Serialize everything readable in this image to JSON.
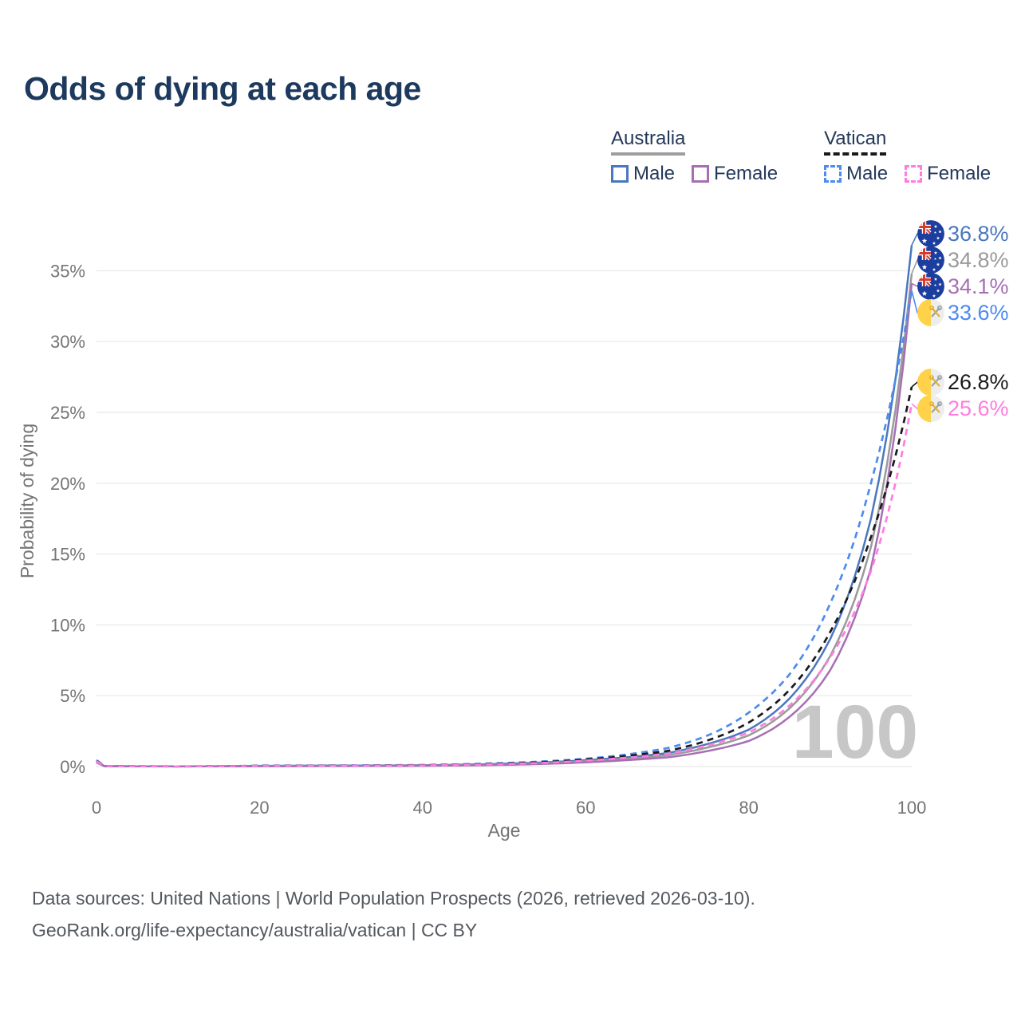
{
  "title": "Odds of dying at each age",
  "watermark": "100",
  "legend": {
    "groups": [
      {
        "country": "Australia",
        "line_style": "solid",
        "items": [
          {
            "label": "Male",
            "color_key": "australia_male"
          },
          {
            "label": "Female",
            "color_key": "australia_female"
          }
        ]
      },
      {
        "country": "Vatican",
        "line_style": "dashed",
        "items": [
          {
            "label": "Male",
            "color_key": "vatican_male"
          },
          {
            "label": "Female",
            "color_key": "vatican_female"
          }
        ]
      }
    ]
  },
  "footer": {
    "line1": "Data sources: United Nations | World Population Prospects (2026, retrieved 2026-03-10).",
    "line2": "GeoRank.org/life-expectancy/australia/vatican | CC BY"
  },
  "colors": {
    "title": "#1d3a5e",
    "legend_text": "#24395a",
    "axis_text": "#757575",
    "grid": "#ececec",
    "watermark": "#c7c7c7",
    "footer_text": "#54595f",
    "australia_underline": "#9e9e9e",
    "vatican_underline": "#1a1a1a",
    "australia_male": "#4a77bd",
    "australia_total": "#9a9a9a",
    "australia_female": "#a76fb2",
    "vatican_male": "#4d8bf0",
    "vatican_total": "#1a1a1a",
    "vatican_female": "#ff7ce0",
    "flag_australia_blue": "#1c3e9f",
    "flag_red": "#d83a2b",
    "flag_white": "#ffffff",
    "flag_vatican_yellow": "#ffd24a",
    "flag_vatican_silver": "#ededed",
    "flag_vatican_key_gold": "#e0b231",
    "flag_vatican_key_gray": "#9aa0a6"
  },
  "chart_data": {
    "type": "line",
    "title": "Odds of dying at each age",
    "xlabel": "Age",
    "ylabel": "Probability of dying",
    "x_ticks": [
      0,
      20,
      40,
      60,
      80,
      100
    ],
    "y_tick_labels": [
      "0%",
      "5%",
      "10%",
      "15%",
      "20%",
      "25%",
      "30%",
      "35%"
    ],
    "y_tick_values_pct": [
      0,
      5,
      10,
      15,
      20,
      25,
      30,
      35
    ],
    "xlim": [
      0,
      100
    ],
    "ylim_pct": [
      0,
      38.5
    ],
    "grid": "horizontal-only",
    "legend_position": "top-right",
    "ages": [
      0,
      1,
      10,
      20,
      30,
      40,
      50,
      60,
      65,
      70,
      75,
      80,
      85,
      90,
      95,
      100
    ],
    "series": [
      {
        "id": "australia_male",
        "name": "Australia Male",
        "dash": "solid",
        "color_key": "australia_male",
        "icon": "australia-flag-icon",
        "end_label": "36.8%",
        "end_value_pct": 36.8,
        "values_pct": [
          0.35,
          0.03,
          0.01,
          0.05,
          0.07,
          0.09,
          0.2,
          0.45,
          0.65,
          0.95,
          1.6,
          2.6,
          4.8,
          9.0,
          17.5,
          36.8
        ]
      },
      {
        "id": "australia_total",
        "name": "Australia Both sexes",
        "dash": "solid",
        "color_key": "australia_total",
        "icon": "australia-flag-icon",
        "end_label": "34.8%",
        "end_value_pct": 34.8,
        "values_pct": [
          0.3,
          0.025,
          0.009,
          0.035,
          0.05,
          0.07,
          0.15,
          0.38,
          0.55,
          0.8,
          1.35,
          2.2,
          4.1,
          7.8,
          15.5,
          34.8
        ]
      },
      {
        "id": "australia_female",
        "name": "Australia Female",
        "dash": "solid",
        "color_key": "australia_female",
        "icon": "australia-flag-icon",
        "end_label": "34.1%",
        "end_value_pct": 34.1,
        "values_pct": [
          0.28,
          0.02,
          0.008,
          0.02,
          0.035,
          0.05,
          0.12,
          0.3,
          0.45,
          0.65,
          1.1,
          1.8,
          3.5,
          6.8,
          14.0,
          34.1
        ]
      },
      {
        "id": "vatican_male",
        "name": "Vatican Male",
        "dash": "dashed",
        "color_key": "vatican_male",
        "icon": "vatican-flag-icon",
        "end_label": "33.6%",
        "end_value_pct": 33.6,
        "values_pct": [
          0.45,
          0.04,
          0.012,
          0.06,
          0.08,
          0.11,
          0.25,
          0.55,
          0.85,
          1.3,
          2.2,
          3.8,
          6.5,
          11.5,
          20.0,
          33.6
        ]
      },
      {
        "id": "vatican_total",
        "name": "Vatican Both sexes",
        "dash": "dashed",
        "color_key": "vatican_total",
        "icon": "vatican-flag-icon",
        "end_label": "26.8%",
        "end_value_pct": 26.8,
        "values_pct": [
          0.4,
          0.035,
          0.011,
          0.05,
          0.065,
          0.09,
          0.2,
          0.5,
          0.75,
          1.1,
          1.85,
          3.1,
          5.4,
          9.5,
          16.2,
          26.8
        ]
      },
      {
        "id": "vatican_female",
        "name": "Vatican Female",
        "dash": "dashed",
        "color_key": "vatican_female",
        "icon": "vatican-flag-icon",
        "end_label": "25.6%",
        "end_value_pct": 25.6,
        "values_pct": [
          0.38,
          0.03,
          0.01,
          0.04,
          0.055,
          0.08,
          0.17,
          0.42,
          0.62,
          0.9,
          1.5,
          2.4,
          4.3,
          7.7,
          13.8,
          25.6
        ]
      }
    ]
  }
}
